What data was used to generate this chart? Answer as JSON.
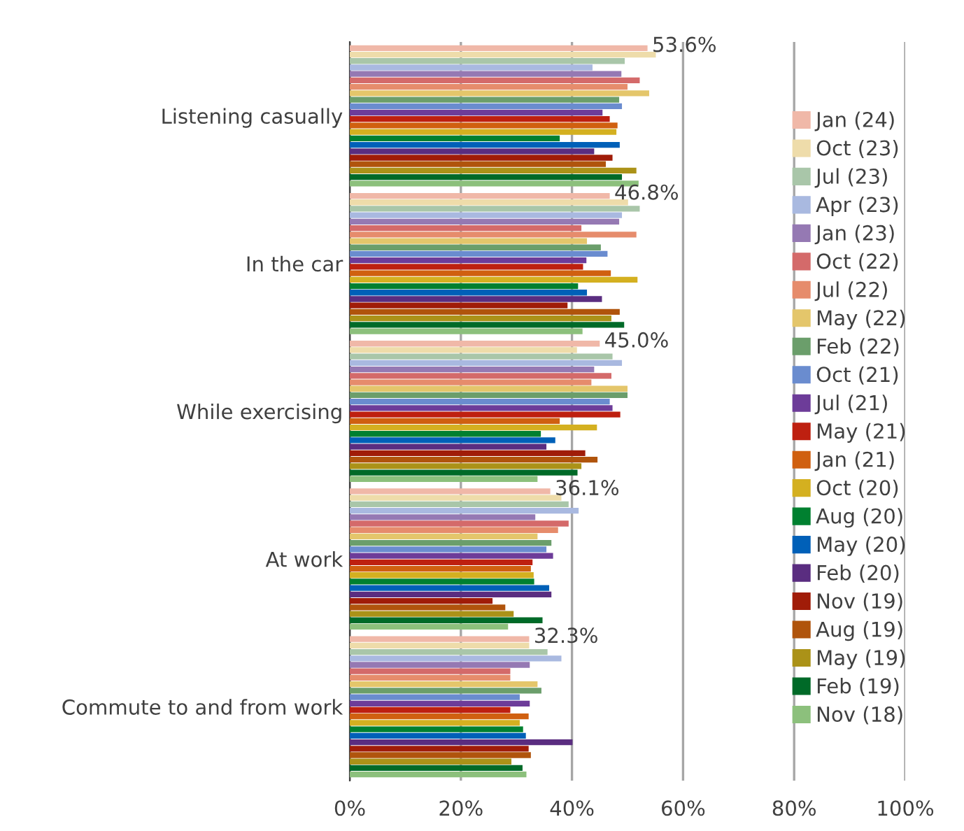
{
  "chart_data": {
    "type": "bar",
    "orientation": "horizontal",
    "categories": [
      "Listening casually",
      "In the car",
      "While exercising",
      "At work",
      "Commute to and from work"
    ],
    "xlim": [
      0,
      100
    ],
    "xticks": [
      {
        "value": 0,
        "label": "0%"
      },
      {
        "value": 20,
        "label": "20%"
      },
      {
        "value": 40,
        "label": "40%"
      },
      {
        "value": 60,
        "label": "60%"
      },
      {
        "value": 80,
        "label": "80%"
      },
      {
        "value": 100,
        "label": "100%"
      }
    ],
    "grid": "x",
    "legend": "right",
    "series": [
      {
        "name": "Jan (24)",
        "color": "#f0b8a8",
        "values": [
          53.6,
          46.8,
          45.0,
          36.1,
          32.3
        ],
        "value_labels": [
          "53.6%",
          "46.8%",
          "45.0%",
          "36.1%",
          "32.3%"
        ]
      },
      {
        "name": "Oct (23)",
        "color": "#eedcaa",
        "values": [
          55.1,
          50.1,
          40.9,
          38.1,
          32.3
        ]
      },
      {
        "name": "Jul (23)",
        "color": "#a9c6a9",
        "values": [
          49.5,
          52.2,
          47.3,
          39.4,
          35.6
        ]
      },
      {
        "name": "Apr (23)",
        "color": "#a9b9e0",
        "values": [
          43.7,
          49.0,
          49.0,
          41.2,
          38.1
        ]
      },
      {
        "name": "Jan (23)",
        "color": "#9579b3",
        "values": [
          48.9,
          48.5,
          44.0,
          33.4,
          32.4
        ]
      },
      {
        "name": "Oct (22)",
        "color": "#d46a6a",
        "values": [
          52.2,
          41.7,
          47.1,
          39.4,
          28.9
        ]
      },
      {
        "name": "Jul (22)",
        "color": "#e68c6c",
        "values": [
          50.0,
          51.6,
          43.5,
          37.5,
          28.9
        ]
      },
      {
        "name": "May (22)",
        "color": "#e4c66b",
        "values": [
          53.9,
          42.7,
          50.0,
          33.8,
          33.8
        ]
      },
      {
        "name": "Feb (22)",
        "color": "#6b9e6b",
        "values": [
          48.5,
          45.2,
          50.0,
          36.3,
          34.5
        ]
      },
      {
        "name": "Oct (21)",
        "color": "#6a8ccf",
        "values": [
          49.0,
          46.4,
          46.8,
          35.4,
          30.6
        ]
      },
      {
        "name": "Jul (21)",
        "color": "#6d3c99",
        "values": [
          45.5,
          42.6,
          47.3,
          36.6,
          32.4
        ]
      },
      {
        "name": "May (21)",
        "color": "#be2010",
        "values": [
          46.8,
          42.0,
          48.7,
          32.9,
          28.9
        ]
      },
      {
        "name": "Jan (21)",
        "color": "#d06010",
        "values": [
          48.2,
          47.0,
          37.8,
          32.6,
          32.2
        ]
      },
      {
        "name": "Oct (20)",
        "color": "#d4b020",
        "values": [
          48.0,
          51.8,
          44.5,
          33.1,
          30.6
        ]
      },
      {
        "name": "Aug (20)",
        "color": "#008030",
        "values": [
          37.8,
          41.1,
          34.4,
          33.2,
          31.2
        ]
      },
      {
        "name": "May (20)",
        "color": "#0060b8",
        "values": [
          48.6,
          42.7,
          37.0,
          35.9,
          31.7
        ]
      },
      {
        "name": "Feb (20)",
        "color": "#5a2d80",
        "values": [
          44.0,
          45.4,
          35.4,
          36.3,
          40.1
        ]
      },
      {
        "name": "Nov (19)",
        "color": "#a01c08",
        "values": [
          47.3,
          39.2,
          42.4,
          25.7,
          32.2
        ]
      },
      {
        "name": "Aug (19)",
        "color": "#b0540c",
        "values": [
          46.1,
          48.6,
          44.6,
          28.0,
          32.6
        ]
      },
      {
        "name": "May (19)",
        "color": "#ab9218",
        "values": [
          51.6,
          47.1,
          41.7,
          29.5,
          29.1
        ]
      },
      {
        "name": "Feb (19)",
        "color": "#006a28",
        "values": [
          49.0,
          49.4,
          41.0,
          34.7,
          31.1
        ]
      },
      {
        "name": "Nov (18)",
        "color": "#8cc07c",
        "values": [
          52.0,
          41.9,
          33.8,
          28.5,
          31.8
        ]
      }
    ]
  }
}
